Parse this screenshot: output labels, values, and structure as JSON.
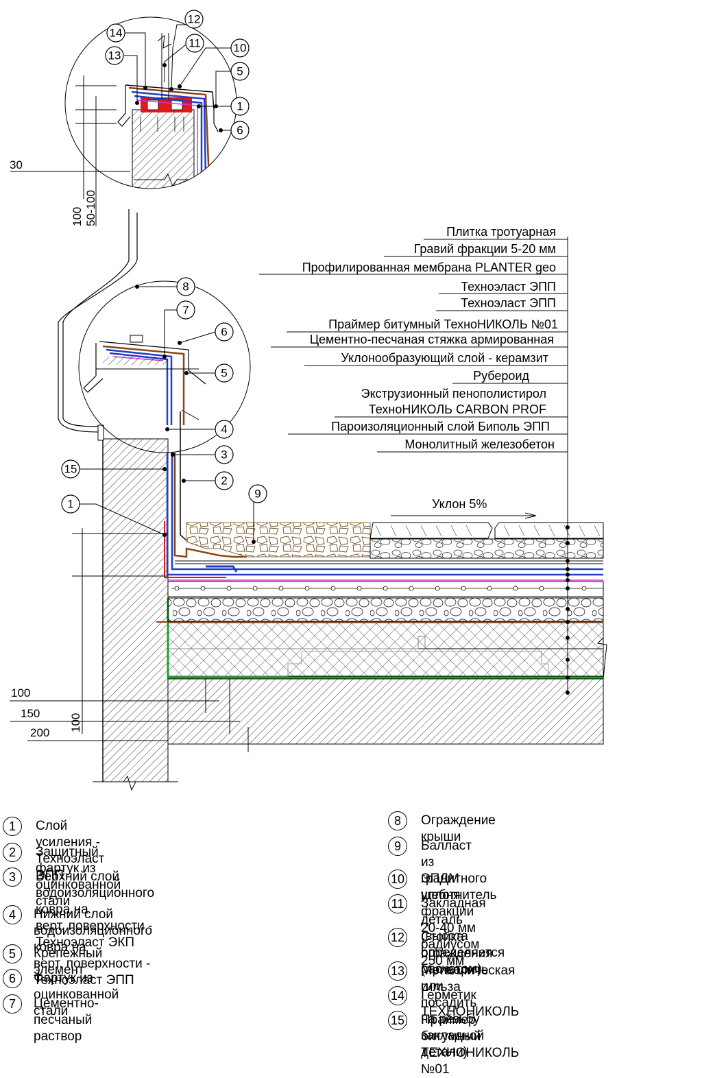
{
  "layers": [
    "Плитка тротуарная",
    "Гравий фракции 5-20 мм",
    "Профилированная мембрана PLANTER geo",
    "Техноэласт ЭПП",
    "Техноэласт ЭПП",
    "Праймер битумный ТехноНИКОЛЬ №01",
    "Цементно-песчаная стяжка армированная",
    "Уклонообразующий слой - керамзит",
    "Рубероид",
    "Экструзионный пенополистирол",
    "ТехноНИКОЛЬ CARBON PROF",
    "Пароизоляционный слой Биполь ЭПП",
    "Монолитный железобетон"
  ],
  "slope_label": "Уклон 5%",
  "dims": {
    "d30": "30",
    "d100_top": "100",
    "d50_100": "50-100",
    "d100": "100",
    "d150": "150",
    "d200": "200",
    "d100_vert": "100"
  },
  "callouts": [
    "1",
    "2",
    "3",
    "4",
    "5",
    "6",
    "7",
    "8",
    "9",
    "10",
    "11",
    "12",
    "13",
    "14",
    "15"
  ],
  "legend_left": [
    {
      "n": "1",
      "text": "Слой усиления - Техноэласт ЭПП"
    },
    {
      "n": "2",
      "text": "Защитный фартук из оцинкованной стали"
    },
    {
      "n": "3",
      "text": "Верхний слой водоизоляционного ковра на\nверт. поверхности - Техноэласт ЭКП"
    },
    {
      "n": "4",
      "text": "Нижний слой водоизоляционного ковра на\nверт. поверхности - Техноэласт ЭПП"
    },
    {
      "n": "5",
      "text": "Крепежный элемент"
    },
    {
      "n": "6",
      "text": "Фартук из оцинкованной стали"
    },
    {
      "n": "7",
      "text": "Цементно- песчаный раствор"
    }
  ],
  "legend_right": [
    {
      "n": "8",
      "text": "Ограждение крыши"
    },
    {
      "n": "9",
      "text": "Балласт из гранитного щебня\nфракции 20-40 мм радиусом 250 мм"
    },
    {
      "n": "10",
      "text": "ЭПДМ уплотнитель"
    },
    {
      "n": "11",
      "text": "Закладная деталь\n (высота определяется расчетом)"
    },
    {
      "n": "12",
      "text": "Стойка ограждения (приварить  или\nпосадить на резьбу закладной детали)"
    },
    {
      "n": "13",
      "text": "Металлическая гильза"
    },
    {
      "n": "14",
      "text": "Герметик ТЕХНОНИКОЛЬ"
    },
    {
      "n": "15",
      "text": "Праймер битумный ТЕХНОНИКОЛЬ №01"
    }
  ]
}
